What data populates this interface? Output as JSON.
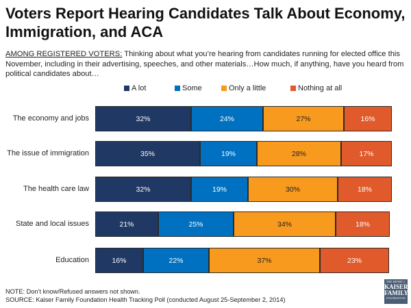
{
  "title": "Voters Report Hearing Candidates Talk About Economy, Immigration, and ACA",
  "question": {
    "lead": "AMONG REGISTERED VOTERS:",
    "text": " Thinking about what you’re hearing from candidates running for elected office this November, including in their advertising, speeches, and other materials…How much, if anything, have you heard from political candidates about…"
  },
  "colors": {
    "a_lot": "#1f3864",
    "some": "#0070c0",
    "only_a_little": "#f79a1e",
    "nothing_at_all": "#e05a2b"
  },
  "chart_data": {
    "type": "bar",
    "orientation": "horizontal",
    "stacked": true,
    "categories": [
      "The economy and jobs",
      "The issue of immigration",
      "The health care law",
      "State and local issues",
      "Education"
    ],
    "series": [
      {
        "name": "A lot",
        "key": "a_lot",
        "values": [
          32,
          35,
          32,
          21,
          16
        ]
      },
      {
        "name": "Some",
        "key": "some",
        "values": [
          24,
          19,
          19,
          25,
          22
        ]
      },
      {
        "name": "Only a little",
        "key": "only_a_little",
        "values": [
          27,
          28,
          30,
          34,
          37
        ]
      },
      {
        "name": "Nothing at all",
        "key": "nothing_at_all",
        "values": [
          16,
          17,
          18,
          18,
          23
        ]
      }
    ],
    "value_suffix": "%",
    "legend_position": "top"
  },
  "footer": {
    "note": "NOTE: Don’t know/Refused answers not shown.",
    "source": "SOURCE: Kaiser Family Foundation Health Tracking Poll (conducted August 25-September 2, 2014)"
  },
  "logo": {
    "line1": "THE HENRY J.",
    "line2": "KAISER",
    "line3": "FAMILY",
    "line4": "FOUNDATION"
  }
}
